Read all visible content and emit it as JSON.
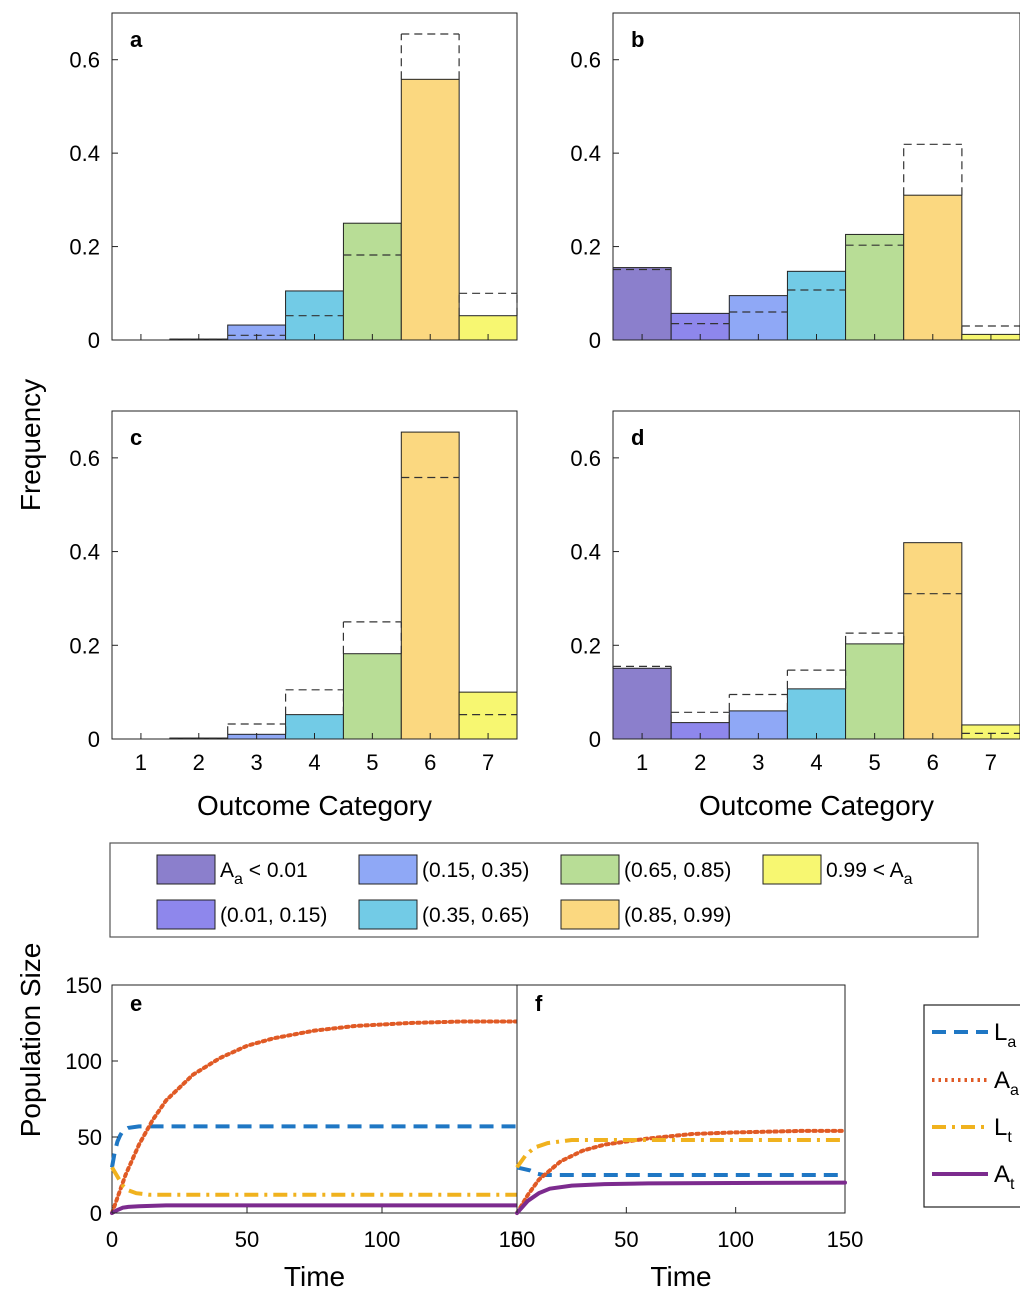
{
  "shared": {
    "ylabel": "Frequency",
    "xlabel": "Outcome Category",
    "x_ticks": [
      "1",
      "2",
      "3",
      "4",
      "5",
      "6",
      "7"
    ],
    "y_ticks": [
      "0",
      "0.2",
      "0.4",
      "0.6"
    ],
    "ylim": [
      0,
      0.7
    ],
    "bin_colors": [
      "#8b7fcc",
      "#8e87ec",
      "#8fa8f6",
      "#72cbe6",
      "#b8dd96",
      "#fbd880",
      "#f7f771"
    ]
  },
  "legend": {
    "entries": [
      {
        "main": "A",
        "sub": "a",
        "tail": " < 0.01",
        "color": "#8b7fcc"
      },
      {
        "main": "(0.15, 0.35)",
        "color": "#8fa8f6"
      },
      {
        "main": "(0.65, 0.85)",
        "color": "#b8dd96"
      },
      {
        "main": "0.99 < A",
        "sub": "a",
        "tail": "",
        "color": "#f7f771"
      },
      {
        "main": "(0.01, 0.15)",
        "color": "#8e87ec"
      },
      {
        "main": "(0.35, 0.65)",
        "color": "#72cbe6"
      },
      {
        "main": "(0.85, 0.99)",
        "color": "#fbd880"
      }
    ]
  },
  "chart_data": [
    {
      "type": "bar",
      "panel": "a",
      "categories": [
        "1",
        "2",
        "3",
        "4",
        "5",
        "6",
        "7"
      ],
      "values": [
        0,
        0.002,
        0.032,
        0.105,
        0.25,
        0.558,
        0.052
      ],
      "reference": [
        0,
        0.002,
        0.01,
        0.052,
        0.182,
        0.655,
        0.1
      ]
    },
    {
      "type": "bar",
      "panel": "b",
      "categories": [
        "1",
        "2",
        "3",
        "4",
        "5",
        "6",
        "7"
      ],
      "values": [
        0.155,
        0.057,
        0.095,
        0.147,
        0.226,
        0.31,
        0.012
      ],
      "reference": [
        0.151,
        0.035,
        0.06,
        0.107,
        0.203,
        0.419,
        0.03
      ]
    },
    {
      "type": "bar",
      "panel": "c",
      "categories": [
        "1",
        "2",
        "3",
        "4",
        "5",
        "6",
        "7"
      ],
      "values": [
        0,
        0.002,
        0.01,
        0.052,
        0.182,
        0.655,
        0.1
      ],
      "reference": [
        0,
        0.002,
        0.032,
        0.105,
        0.25,
        0.558,
        0.052
      ]
    },
    {
      "type": "bar",
      "panel": "d",
      "categories": [
        "1",
        "2",
        "3",
        "4",
        "5",
        "6",
        "7"
      ],
      "values": [
        0.151,
        0.035,
        0.06,
        0.107,
        0.203,
        0.419,
        0.03
      ],
      "reference": [
        0.155,
        0.057,
        0.095,
        0.147,
        0.226,
        0.31,
        0.012
      ]
    },
    {
      "type": "line",
      "panel": "e",
      "xlabel": "Time",
      "ylabel": "Population Size",
      "x_ticks": [
        "0",
        "50",
        "100",
        "150"
      ],
      "y_ticks": [
        "0",
        "50",
        "100",
        "150"
      ],
      "xlim": [
        0,
        150
      ],
      "ylim": [
        0,
        150
      ],
      "series": [
        {
          "name": "L_a",
          "points": [
            [
              0,
              30
            ],
            [
              1,
              40
            ],
            [
              2,
              47
            ],
            [
              3,
              51
            ],
            [
              4,
              54
            ],
            [
              6,
              56
            ],
            [
              10,
              57
            ],
            [
              20,
              57
            ],
            [
              50,
              57
            ],
            [
              100,
              57
            ],
            [
              150,
              57
            ]
          ],
          "color": "#1f77c4",
          "style": "dash"
        },
        {
          "name": "A_a",
          "points": [
            [
              0,
              0
            ],
            [
              5,
              25
            ],
            [
              10,
              45
            ],
            [
              15,
              61
            ],
            [
              20,
              74
            ],
            [
              30,
              91
            ],
            [
              40,
              102
            ],
            [
              50,
              110
            ],
            [
              60,
              115
            ],
            [
              75,
              120
            ],
            [
              90,
              123
            ],
            [
              110,
              125
            ],
            [
              130,
              126
            ],
            [
              150,
              126
            ]
          ],
          "color": "#e05a25",
          "style": "dot"
        },
        {
          "name": "L_t",
          "points": [
            [
              0,
              30
            ],
            [
              2,
              24
            ],
            [
              4,
              18
            ],
            [
              6,
              15
            ],
            [
              9,
              13
            ],
            [
              14,
              12
            ],
            [
              25,
              12
            ],
            [
              50,
              12
            ],
            [
              100,
              12
            ],
            [
              150,
              12
            ]
          ],
          "color": "#f0b21e",
          "style": "dashdot"
        },
        {
          "name": "A_t",
          "points": [
            [
              0,
              0
            ],
            [
              2,
              2
            ],
            [
              4,
              3.5
            ],
            [
              6,
              4
            ],
            [
              10,
              4.5
            ],
            [
              20,
              5
            ],
            [
              150,
              5
            ]
          ],
          "color": "#7c2b8e",
          "style": "solid"
        }
      ]
    },
    {
      "type": "line",
      "panel": "f",
      "xlabel": "Time",
      "x_ticks": [
        "0",
        "50",
        "100",
        "150"
      ],
      "xlim": [
        0,
        150
      ],
      "ylim": [
        0,
        150
      ],
      "series": [
        {
          "name": "L_a",
          "points": [
            [
              0,
              30
            ],
            [
              3,
              29
            ],
            [
              6,
              28
            ],
            [
              9,
              26
            ],
            [
              12,
              25
            ],
            [
              20,
              25
            ],
            [
              50,
              25
            ],
            [
              100,
              25
            ],
            [
              150,
              25
            ]
          ],
          "color": "#1f77c4",
          "style": "dash"
        },
        {
          "name": "A_a",
          "points": [
            [
              0,
              0
            ],
            [
              5,
              12
            ],
            [
              10,
              22
            ],
            [
              20,
              34
            ],
            [
              30,
              41
            ],
            [
              40,
              45
            ],
            [
              60,
              49
            ],
            [
              80,
              52
            ],
            [
              100,
              53
            ],
            [
              130,
              54
            ],
            [
              150,
              54
            ]
          ],
          "color": "#e05a25",
          "style": "dot"
        },
        {
          "name": "L_t",
          "points": [
            [
              0,
              30
            ],
            [
              4,
              38
            ],
            [
              8,
              43
            ],
            [
              14,
              46
            ],
            [
              25,
              48
            ],
            [
              50,
              48
            ],
            [
              100,
              48
            ],
            [
              150,
              48
            ]
          ],
          "color": "#f0b21e",
          "style": "dashdot"
        },
        {
          "name": "A_t",
          "points": [
            [
              0,
              0
            ],
            [
              5,
              8
            ],
            [
              10,
              13
            ],
            [
              15,
              16
            ],
            [
              25,
              18
            ],
            [
              40,
              19
            ],
            [
              60,
              19.5
            ],
            [
              150,
              20
            ]
          ],
          "color": "#7c2b8e",
          "style": "solid"
        }
      ]
    }
  ],
  "line_legend": {
    "entries": [
      {
        "main": "L",
        "sub": "a",
        "color": "#1f77c4",
        "style": "dash"
      },
      {
        "main": "A",
        "sub": "a",
        "color": "#e05a25",
        "style": "dot"
      },
      {
        "main": "L",
        "sub": "t",
        "color": "#f0b21e",
        "style": "dashdot"
      },
      {
        "main": "A",
        "sub": "t",
        "color": "#7c2b8e",
        "style": "solid"
      }
    ]
  }
}
